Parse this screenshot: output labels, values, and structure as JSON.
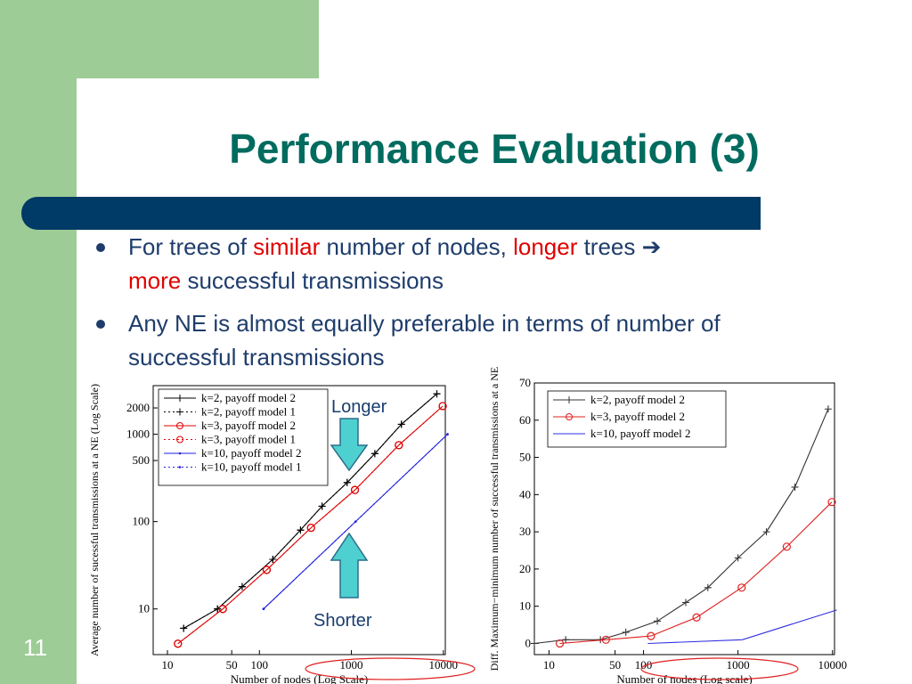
{
  "slide": {
    "title": "Performance Evaluation (3)",
    "number": "11",
    "bullets": [
      {
        "p1": "For trees of ",
        "p2": "similar",
        "p3": " number of nodes, ",
        "p4": "longer",
        "p5": " trees ",
        "arrow": "➔",
        "p6": "more",
        "p7": " successful transmissions"
      },
      {
        "text": "Any NE is almost equally preferable in terms of number of successful transmissions"
      }
    ],
    "callouts": {
      "longer": "Longer",
      "shorter": "Shorter"
    },
    "colors": {
      "title": "#006b5f",
      "bar": "#003a66",
      "green": "#9dcc96",
      "arrow": "#4fd0d0",
      "highlight": "#e00000"
    }
  },
  "chart_data": [
    {
      "type": "line",
      "xscale": "log",
      "yscale": "log",
      "xlabel": "Number of nodes (Log Scale)",
      "ylabel": "Average number of sucessful transmissions at a NE (Log Scale)",
      "xticks": [
        10,
        50,
        100,
        1000,
        10000
      ],
      "xticklabels": [
        "10",
        "50",
        "100",
        "1000",
        "10000"
      ],
      "yticks": [
        10,
        100,
        500,
        1000,
        2000
      ],
      "yticklabels": [
        "10",
        "100",
        "500",
        "1000",
        "2000"
      ],
      "xlim": [
        7,
        10500
      ],
      "ylim": [
        3,
        3600
      ],
      "legend_position": "top-left",
      "series": [
        {
          "name": "k=2, payoff model 2",
          "color": "#000000",
          "dash": "solid",
          "marker": "plus",
          "x": [
            15,
            35,
            65,
            140,
            280,
            480,
            900,
            1800,
            3500,
            8500
          ],
          "y": [
            6,
            10,
            18,
            37,
            80,
            150,
            280,
            600,
            1300,
            2900
          ]
        },
        {
          "name": "k=2, payoff model 1",
          "color": "#000000",
          "dash": "dotted",
          "marker": "plus",
          "x": [
            15,
            35,
            65,
            140,
            280,
            480,
            900,
            1800,
            3500,
            8500
          ],
          "y": [
            6,
            10,
            18,
            37,
            80,
            150,
            280,
            600,
            1300,
            2900
          ]
        },
        {
          "name": "k=3, payoff model 2",
          "color": "#e00000",
          "dash": "solid",
          "marker": "circle",
          "x": [
            13,
            40,
            120,
            364,
            1093,
            3280,
            9841
          ],
          "y": [
            4,
            10,
            28,
            85,
            230,
            750,
            2100
          ]
        },
        {
          "name": "k=3, payoff model 1",
          "color": "#e00000",
          "dash": "dotted",
          "marker": "circle",
          "x": [
            13,
            40,
            120,
            364,
            1093,
            3280,
            9841
          ],
          "y": [
            4,
            10,
            28,
            85,
            230,
            750,
            2100
          ]
        },
        {
          "name": "k=10, payoff model 2",
          "color": "#2020e0",
          "dash": "solid",
          "marker": "dot",
          "x": [
            111,
            1111,
            11111
          ],
          "y": [
            10,
            100,
            1000
          ]
        },
        {
          "name": "k=10, payoff model 1",
          "color": "#2020e0",
          "dash": "dotted",
          "marker": "dot",
          "x": [
            111,
            1111,
            11111
          ],
          "y": [
            10,
            100,
            1000
          ]
        }
      ]
    },
    {
      "type": "line",
      "xscale": "log",
      "yscale": "linear",
      "xlabel": "Number of nodes (Log scale)",
      "ylabel": "Diff. Maximum−minimum number of successful transmissions at a NE",
      "xticks": [
        10,
        50,
        100,
        1000,
        10000
      ],
      "xticklabels": [
        "10",
        "50",
        "100",
        "1000",
        "10000"
      ],
      "yticks": [
        0,
        10,
        20,
        30,
        40,
        50,
        60,
        70
      ],
      "yticklabels": [
        "0",
        "10",
        "20",
        "30",
        "40",
        "50",
        "60",
        "70"
      ],
      "xlim": [
        7,
        10500
      ],
      "ylim": [
        -3,
        70
      ],
      "legend_position": "top-left",
      "series": [
        {
          "name": "k=2, payoff model 2",
          "color": "#333333",
          "dash": "solid",
          "marker": "plus",
          "x": [
            7,
            15,
            35,
            65,
            140,
            280,
            480,
            1000,
            2000,
            4000,
            9000
          ],
          "y": [
            0,
            1,
            1,
            3,
            6,
            11,
            15,
            23,
            30,
            42,
            63
          ]
        },
        {
          "name": "k=3, payoff model 2",
          "color": "#e02020",
          "dash": "solid",
          "marker": "circle",
          "x": [
            13,
            40,
            120,
            364,
            1093,
            3280,
            9841
          ],
          "y": [
            0,
            1,
            2,
            7,
            15,
            26,
            38
          ]
        },
        {
          "name": "k=10, payoff model 2",
          "color": "#3030e0",
          "dash": "solid",
          "marker": "none",
          "x": [
            111,
            1111,
            11111
          ],
          "y": [
            0,
            1,
            9
          ]
        }
      ]
    }
  ]
}
